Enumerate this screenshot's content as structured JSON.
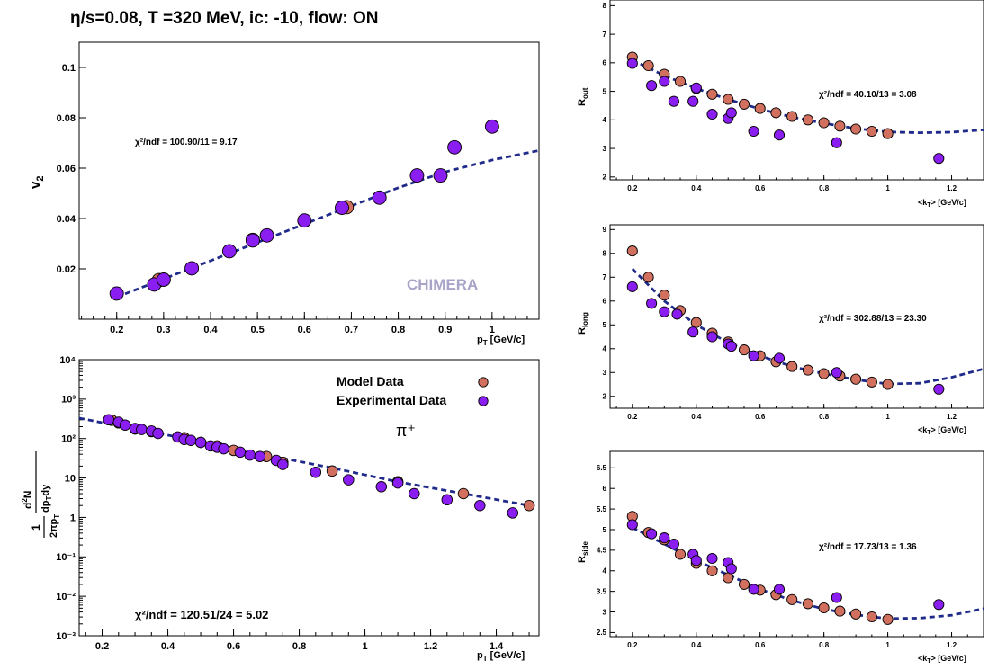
{
  "header": {
    "title": "η/s=0.08, T =320 MeV, ic: -10, flow: ON"
  },
  "colors": {
    "model": "#d2705f",
    "experimental": "#8a1df0",
    "fit": "#1f2a8a",
    "watermark": "#a8a4c8"
  },
  "chart_data": [
    {
      "id": "v2",
      "type": "scatter",
      "xlabel": "p_T [GeV/c]",
      "ylabel": "v_2",
      "xlim": [
        0.12,
        1.1
      ],
      "ylim": [
        0.0,
        0.11
      ],
      "log_y": false,
      "xticks": [
        0.2,
        0.3,
        0.4,
        0.5,
        0.6,
        0.7,
        0.8,
        0.9,
        1.0
      ],
      "xtick_labels": [
        "0.2",
        "0.3",
        "0.4",
        "0.5",
        "0.6",
        "0.7",
        "0.8",
        "0.9",
        "1"
      ],
      "yticks": [
        0.02,
        0.04,
        0.06,
        0.08,
        0.1
      ],
      "ytick_labels": [
        "0.02",
        "0.04",
        "0.06",
        "0.08",
        "0.1"
      ],
      "annotations": {
        "chi2": "χ²/ndf = 100.90/11 = 9.17",
        "watermark": "CHIMERA"
      },
      "series": [
        {
          "name": "Model Data",
          "points": [
            [
              0.29,
              0.0155
            ],
            [
              0.49,
              0.0315
            ],
            [
              0.69,
              0.0445
            ]
          ]
        },
        {
          "name": "Experimental Data",
          "points": [
            [
              0.2,
              0.0102
            ],
            [
              0.28,
              0.0138
            ],
            [
              0.3,
              0.0157
            ],
            [
              0.36,
              0.0202
            ],
            [
              0.44,
              0.027
            ],
            [
              0.49,
              0.0313
            ],
            [
              0.52,
              0.0333
            ],
            [
              0.6,
              0.0392
            ],
            [
              0.68,
              0.0443
            ],
            [
              0.76,
              0.0483
            ],
            [
              0.84,
              0.0571
            ],
            [
              0.89,
              0.0571
            ],
            [
              0.92,
              0.0683
            ],
            [
              1.0,
              0.0765
            ]
          ]
        },
        {
          "name": "fit",
          "type": "line",
          "points": [
            [
              0.2,
              0.0088
            ],
            [
              0.3,
              0.016
            ],
            [
              0.4,
              0.0232
            ],
            [
              0.5,
              0.0305
            ],
            [
              0.6,
              0.0378
            ],
            [
              0.7,
              0.045
            ],
            [
              0.8,
              0.0522
            ],
            [
              0.9,
              0.0585
            ],
            [
              1.0,
              0.0632
            ],
            [
              1.1,
              0.067
            ]
          ]
        }
      ]
    },
    {
      "id": "spectrum",
      "type": "scatter",
      "xlabel": "p_T [GeV/c]",
      "ylabel": "1/(2πp_T) d²N/(dp_T dy)",
      "xlim": [
        0.13,
        1.53
      ],
      "ylim": [
        0.001,
        10000
      ],
      "log_y": true,
      "xticks": [
        0.2,
        0.4,
        0.6,
        0.8,
        1.0,
        1.2,
        1.4
      ],
      "xtick_labels": [
        "0.2",
        "0.4",
        "0.6",
        "0.8",
        "1",
        "1.2",
        "1.4"
      ],
      "yticks": [
        0.001,
        0.01,
        0.1,
        1,
        10,
        100,
        1000,
        10000
      ],
      "ytick_labels": [
        "10⁻³",
        "10⁻²",
        "10⁻¹",
        "1",
        "10",
        "10²",
        "10³",
        "10⁴"
      ],
      "legend": {
        "placement": "top-right"
      },
      "annotations": {
        "chi2": "χ²/ndf = 120.51/24 = 5.02",
        "particle": "π⁺"
      },
      "series": [
        {
          "name": "Model Data",
          "points": [
            [
              0.23,
              290
            ],
            [
              0.25,
              250
            ],
            [
              0.3,
              175
            ],
            [
              0.35,
              150
            ],
            [
              0.45,
              105
            ],
            [
              0.5,
              80
            ],
            [
              0.55,
              65
            ],
            [
              0.6,
              50
            ],
            [
              0.7,
              35
            ],
            [
              0.75,
              25
            ],
            [
              0.9,
              15
            ],
            [
              1.1,
              8
            ],
            [
              1.3,
              4
            ],
            [
              1.5,
              2
            ]
          ]
        },
        {
          "name": "Experimental Data",
          "points": [
            [
              0.22,
              300
            ],
            [
              0.25,
              260
            ],
            [
              0.27,
              220
            ],
            [
              0.3,
              180
            ],
            [
              0.32,
              170
            ],
            [
              0.35,
              155
            ],
            [
              0.37,
              135
            ],
            [
              0.43,
              110
            ],
            [
              0.45,
              95
            ],
            [
              0.47,
              90
            ],
            [
              0.5,
              80
            ],
            [
              0.53,
              65
            ],
            [
              0.55,
              60
            ],
            [
              0.57,
              55
            ],
            [
              0.62,
              45
            ],
            [
              0.65,
              38
            ],
            [
              0.68,
              35
            ],
            [
              0.73,
              28
            ],
            [
              0.75,
              22
            ],
            [
              0.85,
              14
            ],
            [
              0.95,
              9
            ],
            [
              1.05,
              6
            ],
            [
              1.1,
              7.5
            ],
            [
              1.15,
              4
            ],
            [
              1.25,
              2.8
            ],
            [
              1.35,
              2
            ],
            [
              1.45,
              1.3
            ]
          ]
        },
        {
          "name": "fit",
          "type": "line",
          "points": [
            [
              0.13,
              330
            ],
            [
              0.3,
              175
            ],
            [
              0.5,
              85
            ],
            [
              0.7,
              38
            ],
            [
              0.9,
              18
            ],
            [
              1.1,
              8
            ],
            [
              1.3,
              4
            ],
            [
              1.5,
              2
            ]
          ]
        }
      ]
    },
    {
      "id": "rout",
      "type": "scatter",
      "xlabel": "<k_T> [GeV/c]",
      "ylabel": "R_out",
      "xlim": [
        0.13,
        1.3
      ],
      "ylim": [
        1.9,
        8.2
      ],
      "log_y": false,
      "xticks": [
        0.2,
        0.4,
        0.6,
        0.8,
        1.0,
        1.2
      ],
      "xtick_labels": [
        "0.2",
        "0.4",
        "0.6",
        "0.8",
        "1",
        "1.2"
      ],
      "yticks": [
        2,
        3,
        4,
        5,
        6,
        7,
        8
      ],
      "ytick_labels": [
        "2",
        "3",
        "4",
        "5",
        "6",
        "7",
        "8"
      ],
      "annotations": {
        "chi2": "χ²/ndf = 40.10/13 = 3.08"
      },
      "series": [
        {
          "name": "Model Data",
          "points": [
            [
              0.2,
              6.2
            ],
            [
              0.25,
              5.9
            ],
            [
              0.3,
              5.6
            ],
            [
              0.35,
              5.35
            ],
            [
              0.4,
              5.1
            ],
            [
              0.45,
              4.9
            ],
            [
              0.5,
              4.72
            ],
            [
              0.55,
              4.55
            ],
            [
              0.6,
              4.4
            ],
            [
              0.65,
              4.25
            ],
            [
              0.7,
              4.12
            ],
            [
              0.75,
              4.0
            ],
            [
              0.8,
              3.9
            ],
            [
              0.85,
              3.78
            ],
            [
              0.9,
              3.68
            ],
            [
              0.95,
              3.6
            ],
            [
              1.0,
              3.52
            ]
          ]
        },
        {
          "name": "Experimental Data",
          "points": [
            [
              0.2,
              5.98
            ],
            [
              0.26,
              5.2
            ],
            [
              0.3,
              5.35
            ],
            [
              0.33,
              4.65
            ],
            [
              0.39,
              4.65
            ],
            [
              0.4,
              5.12
            ],
            [
              0.45,
              4.2
            ],
            [
              0.5,
              4.05
            ],
            [
              0.51,
              4.25
            ],
            [
              0.58,
              3.6
            ],
            [
              0.66,
              3.47
            ],
            [
              0.84,
              3.2
            ],
            [
              1.16,
              2.65
            ]
          ]
        },
        {
          "name": "fit",
          "type": "line",
          "points": [
            [
              0.2,
              6.1
            ],
            [
              0.3,
              5.55
            ],
            [
              0.4,
              5.1
            ],
            [
              0.5,
              4.72
            ],
            [
              0.6,
              4.38
            ],
            [
              0.7,
              4.1
            ],
            [
              0.8,
              3.88
            ],
            [
              0.9,
              3.7
            ],
            [
              1.0,
              3.58
            ],
            [
              1.1,
              3.55
            ],
            [
              1.2,
              3.57
            ],
            [
              1.3,
              3.65
            ]
          ]
        }
      ]
    },
    {
      "id": "rlong",
      "type": "scatter",
      "xlabel": "<k_T> [GeV/c]",
      "ylabel": "R_long",
      "xlim": [
        0.13,
        1.3
      ],
      "ylim": [
        1.5,
        9.2
      ],
      "log_y": false,
      "xticks": [
        0.2,
        0.4,
        0.6,
        0.8,
        1.0,
        1.2
      ],
      "xtick_labels": [
        "0.2",
        "0.4",
        "0.6",
        "0.8",
        "1",
        "1.2"
      ],
      "yticks": [
        2,
        3,
        4,
        5,
        6,
        7,
        8,
        9
      ],
      "ytick_labels": [
        "2",
        "3",
        "4",
        "5",
        "6",
        "7",
        "8",
        "9"
      ],
      "annotations": {
        "chi2": "χ²/ndf = 302.88/13 = 23.30"
      },
      "series": [
        {
          "name": "Model Data",
          "points": [
            [
              0.2,
              8.1
            ],
            [
              0.25,
              7.0
            ],
            [
              0.3,
              6.25
            ],
            [
              0.35,
              5.6
            ],
            [
              0.4,
              5.1
            ],
            [
              0.45,
              4.65
            ],
            [
              0.5,
              4.28
            ],
            [
              0.55,
              3.95
            ],
            [
              0.6,
              3.7
            ],
            [
              0.65,
              3.45
            ],
            [
              0.7,
              3.25
            ],
            [
              0.75,
              3.1
            ],
            [
              0.8,
              2.95
            ],
            [
              0.85,
              2.85
            ],
            [
              0.9,
              2.72
            ],
            [
              0.95,
              2.6
            ],
            [
              1.0,
              2.5
            ]
          ]
        },
        {
          "name": "Experimental Data",
          "points": [
            [
              0.2,
              6.6
            ],
            [
              0.26,
              5.9
            ],
            [
              0.3,
              5.55
            ],
            [
              0.34,
              5.45
            ],
            [
              0.39,
              4.7
            ],
            [
              0.45,
              4.5
            ],
            [
              0.5,
              4.2
            ],
            [
              0.51,
              4.1
            ],
            [
              0.58,
              3.7
            ],
            [
              0.66,
              3.6
            ],
            [
              0.84,
              3.0
            ],
            [
              1.16,
              2.3
            ]
          ]
        },
        {
          "name": "fit",
          "type": "line",
          "points": [
            [
              0.2,
              7.35
            ],
            [
              0.3,
              6.0
            ],
            [
              0.4,
              5.0
            ],
            [
              0.5,
              4.25
            ],
            [
              0.6,
              3.7
            ],
            [
              0.7,
              3.25
            ],
            [
              0.8,
              2.95
            ],
            [
              0.9,
              2.7
            ],
            [
              1.0,
              2.52
            ],
            [
              1.1,
              2.55
            ],
            [
              1.2,
              2.8
            ],
            [
              1.3,
              3.15
            ]
          ]
        }
      ]
    },
    {
      "id": "rside",
      "type": "scatter",
      "xlabel": "<k_T> [GeV/c]",
      "ylabel": "R_side",
      "xlim": [
        0.13,
        1.3
      ],
      "ylim": [
        2.4,
        6.9
      ],
      "log_y": false,
      "xticks": [
        0.2,
        0.4,
        0.6,
        0.8,
        1.0,
        1.2
      ],
      "xtick_labels": [
        "0.2",
        "0.4",
        "0.6",
        "0.8",
        "1",
        "1.2"
      ],
      "yticks": [
        2.5,
        3,
        3.5,
        4,
        4.5,
        5,
        5.5,
        6,
        6.5
      ],
      "ytick_labels": [
        "2.5",
        "3",
        "3.5",
        "4",
        "4.5",
        "5",
        "5.5",
        "6",
        "6.5"
      ],
      "annotations": {
        "chi2": "χ²/ndf = 17.73/13 = 1.36"
      },
      "series": [
        {
          "name": "Model Data",
          "points": [
            [
              0.2,
              5.32
            ],
            [
              0.25,
              4.93
            ],
            [
              0.3,
              4.75
            ],
            [
              0.35,
              4.4
            ],
            [
              0.4,
              4.18
            ],
            [
              0.45,
              4.0
            ],
            [
              0.5,
              3.83
            ],
            [
              0.55,
              3.67
            ],
            [
              0.6,
              3.53
            ],
            [
              0.65,
              3.42
            ],
            [
              0.7,
              3.3
            ],
            [
              0.75,
              3.2
            ],
            [
              0.8,
              3.1
            ],
            [
              0.85,
              3.02
            ],
            [
              0.9,
              2.95
            ],
            [
              0.95,
              2.88
            ],
            [
              1.0,
              2.82
            ]
          ]
        },
        {
          "name": "Experimental Data",
          "points": [
            [
              0.2,
              5.12
            ],
            [
              0.26,
              4.9
            ],
            [
              0.3,
              4.8
            ],
            [
              0.33,
              4.65
            ],
            [
              0.39,
              4.4
            ],
            [
              0.4,
              4.25
            ],
            [
              0.45,
              4.3
            ],
            [
              0.5,
              4.2
            ],
            [
              0.51,
              4.05
            ],
            [
              0.58,
              3.55
            ],
            [
              0.66,
              3.55
            ],
            [
              0.84,
              3.35
            ],
            [
              1.16,
              3.18
            ]
          ]
        },
        {
          "name": "fit",
          "type": "line",
          "points": [
            [
              0.2,
              5.05
            ],
            [
              0.3,
              4.65
            ],
            [
              0.4,
              4.25
            ],
            [
              0.5,
              3.9
            ],
            [
              0.6,
              3.55
            ],
            [
              0.7,
              3.28
            ],
            [
              0.8,
              3.07
            ],
            [
              0.9,
              2.93
            ],
            [
              1.0,
              2.84
            ],
            [
              1.1,
              2.85
            ],
            [
              1.2,
              2.92
            ],
            [
              1.3,
              3.08
            ]
          ]
        }
      ]
    }
  ]
}
